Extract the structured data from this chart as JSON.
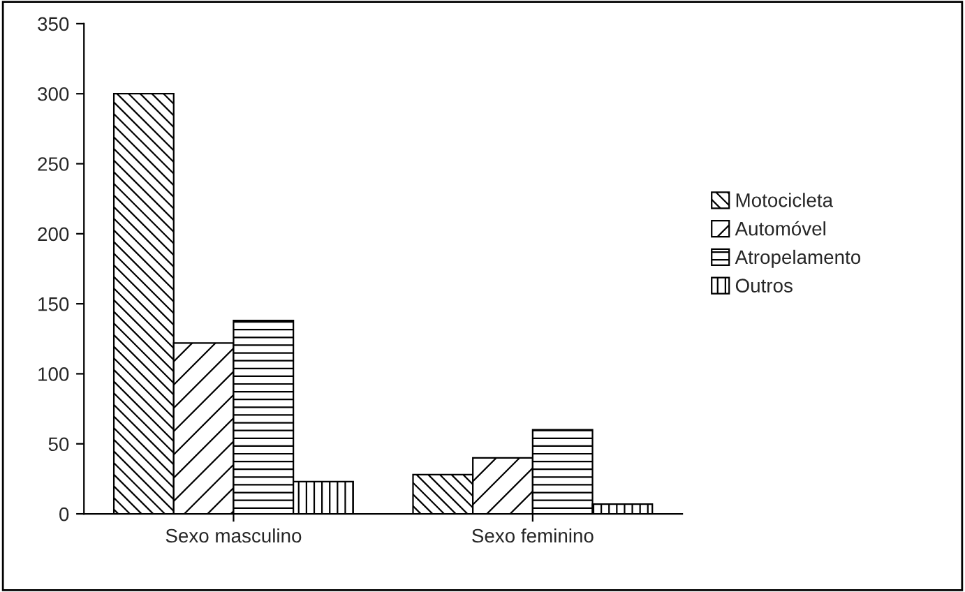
{
  "chart_data": {
    "type": "bar",
    "categories": [
      "Sexo masculino",
      "Sexo feminino"
    ],
    "series": [
      {
        "name": "Motocicleta",
        "color": "#000000",
        "values": [
          300,
          28
        ]
      },
      {
        "name": "Automóvel",
        "color": "#000000",
        "values": [
          122,
          40
        ]
      },
      {
        "name": "Atropelamento",
        "color": "#000000",
        "values": [
          138,
          60
        ]
      },
      {
        "name": "Outros",
        "color": "#000000",
        "values": [
          23,
          7
        ]
      }
    ],
    "ylim": [
      0,
      350
    ],
    "yticks": [
      0,
      50,
      100,
      150,
      200,
      250,
      300,
      350
    ],
    "grid": false,
    "legend": "right"
  }
}
